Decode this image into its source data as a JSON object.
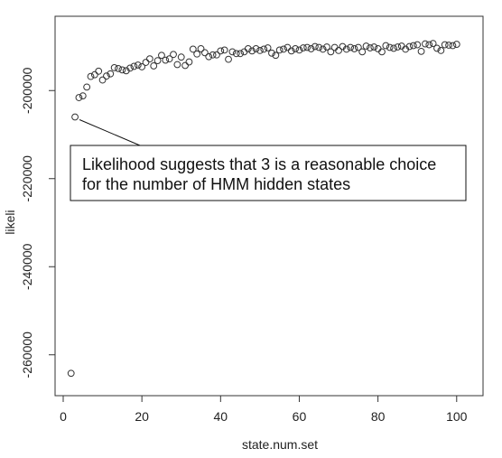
{
  "chart_data": {
    "type": "scatter",
    "title": "",
    "xlabel": "state.num.set",
    "ylabel": "likeli",
    "xlim": [
      0,
      102
    ],
    "ylim": [
      -266000,
      -186000
    ],
    "x_ticks": [
      0,
      20,
      40,
      60,
      80,
      100
    ],
    "y_ticks": [
      -260000,
      -240000,
      -220000,
      -200000
    ],
    "x_tick_labels": [
      "0",
      "20",
      "40",
      "60",
      "80",
      "100"
    ],
    "y_tick_labels": [
      "-260000",
      "-240000",
      "-220000",
      "-200000"
    ],
    "grid": false,
    "legend": "none",
    "marker": "open-circle",
    "series": [
      {
        "x": [
          2,
          3,
          4,
          5,
          6,
          7,
          8,
          9,
          10,
          11,
          12,
          13,
          14,
          15,
          16,
          17,
          18,
          19,
          20,
          21,
          22,
          23,
          24,
          25,
          26,
          27,
          28,
          29,
          30,
          31,
          32,
          33,
          34,
          35,
          36,
          37,
          38,
          39,
          40,
          41,
          42,
          43,
          44,
          45,
          46,
          47,
          48,
          49,
          50,
          51,
          52,
          53,
          54,
          55,
          56,
          57,
          58,
          59,
          60,
          61,
          62,
          63,
          64,
          65,
          66,
          67,
          68,
          69,
          70,
          71,
          72,
          73,
          74,
          75,
          76,
          77,
          78,
          79,
          80,
          81,
          82,
          83,
          84,
          85,
          86,
          87,
          88,
          89,
          90,
          91,
          92,
          93,
          94,
          95,
          96,
          97,
          98,
          99,
          100
        ],
        "values": [
          -264200,
          -206000,
          -201600,
          -201200,
          -199200,
          -196800,
          -196400,
          -195600,
          -197600,
          -196700,
          -196200,
          -194800,
          -195000,
          -195300,
          -195500,
          -194900,
          -194500,
          -194200,
          -194600,
          -193600,
          -192800,
          -194400,
          -193200,
          -192000,
          -193100,
          -192800,
          -191800,
          -194100,
          -192400,
          -194300,
          -193500,
          -190600,
          -191700,
          -190500,
          -191400,
          -192300,
          -191900,
          -191900,
          -191000,
          -190800,
          -192900,
          -191200,
          -191600,
          -191600,
          -191200,
          -190500,
          -191000,
          -190500,
          -190900,
          -190600,
          -190300,
          -191500,
          -192000,
          -190800,
          -190600,
          -190200,
          -191000,
          -190500,
          -190800,
          -190300,
          -190200,
          -190500,
          -190000,
          -190200,
          -190600,
          -190100,
          -191200,
          -190200,
          -190900,
          -190000,
          -190600,
          -190200,
          -190500,
          -190200,
          -191200,
          -189900,
          -190300,
          -190100,
          -190500,
          -191200,
          -189800,
          -190200,
          -190400,
          -190100,
          -189900,
          -190600,
          -190000,
          -189800,
          -189600,
          -191100,
          -189400,
          -189600,
          -189300,
          -190400,
          -190900,
          -189600,
          -189700,
          -189800,
          -189500
        ]
      }
    ],
    "annotations": [
      {
        "lines": [
          "Likelihood suggests that 3 is a reasonable choice",
          "for the number of HMM hidden states"
        ],
        "points_to": {
          "x": 3,
          "y": -206000
        }
      }
    ]
  }
}
